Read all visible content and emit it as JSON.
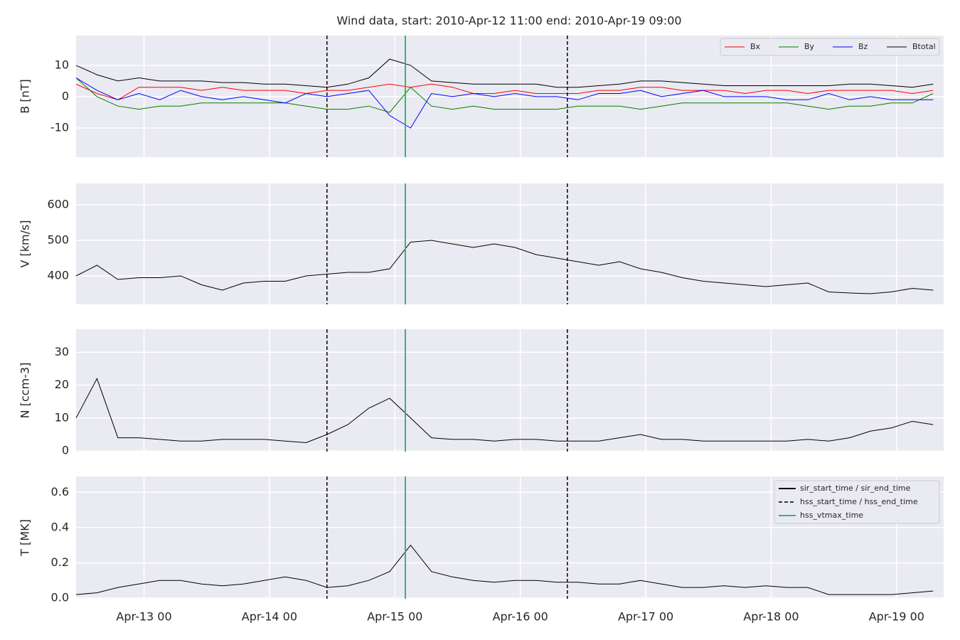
{
  "chart_data": {
    "type": "line",
    "title": "Wind data, start: 2010-Apr-12 11:00  end: 2010-Apr-19 09:00",
    "x": [
      "Apr-12 11",
      "Apr-12 15",
      "Apr-12 19",
      "Apr-12 23",
      "Apr-13 03",
      "Apr-13 07",
      "Apr-13 11",
      "Apr-13 15",
      "Apr-13 19",
      "Apr-13 23",
      "Apr-14 03",
      "Apr-14 07",
      "Apr-14 11",
      "Apr-14 15",
      "Apr-14 19",
      "Apr-14 23",
      "Apr-15 03",
      "Apr-15 07",
      "Apr-15 11",
      "Apr-15 15",
      "Apr-15 19",
      "Apr-15 23",
      "Apr-16 03",
      "Apr-16 07",
      "Apr-16 11",
      "Apr-16 15",
      "Apr-16 19",
      "Apr-16 23",
      "Apr-17 03",
      "Apr-17 07",
      "Apr-17 11",
      "Apr-17 15",
      "Apr-17 19",
      "Apr-17 23",
      "Apr-18 03",
      "Apr-18 07",
      "Apr-18 11",
      "Apr-18 15",
      "Apr-18 19",
      "Apr-18 23",
      "Apr-19 03",
      "Apr-19 07"
    ],
    "xlim": [
      "Apr-12 11",
      "Apr-19 09"
    ],
    "xticks": [
      "Apr-13 00",
      "Apr-14 00",
      "Apr-15 00",
      "Apr-16 00",
      "Apr-17 00",
      "Apr-18 00",
      "Apr-19 00"
    ],
    "grid": true,
    "markers": [
      {
        "name": "sir_start_time / sir_end_time",
        "times": [],
        "style": "solid",
        "color": "#000000"
      },
      {
        "name": "hss_start_time / hss_end_time",
        "times": [
          "Apr-14 11",
          "Apr-16 09"
        ],
        "style": "dashed",
        "color": "#000000"
      },
      {
        "name": "hss_vtmax_time",
        "times": [
          "Apr-15 02"
        ],
        "style": "solid",
        "color": "#3cb371"
      }
    ],
    "panels": [
      {
        "ylabel": "B [nT]",
        "ylim": [
          -19.3,
          19.5
        ],
        "yticks": [
          -10,
          0,
          10
        ],
        "legend": "upper right",
        "series": [
          {
            "name": "Bx",
            "color": "#ff0000",
            "values": [
              4,
              1,
              -1,
              3,
              3,
              3,
              2,
              3,
              2,
              2,
              2,
              1,
              2,
              2,
              3,
              4,
              3,
              4,
              3,
              1,
              1,
              2,
              1,
              1,
              1,
              2,
              2,
              3,
              3,
              2,
              2,
              2,
              1,
              2,
              2,
              1,
              2,
              2,
              2,
              2,
              1,
              2
            ]
          },
          {
            "name": "By",
            "color": "#008000",
            "values": [
              6,
              0,
              -3,
              -4,
              -3,
              -3,
              -2,
              -2,
              -2,
              -2,
              -2,
              -3,
              -4,
              -4,
              -3,
              -5,
              3,
              -3,
              -4,
              -3,
              -4,
              -4,
              -4,
              -4,
              -3,
              -3,
              -3,
              -4,
              -3,
              -2,
              -2,
              -2,
              -2,
              -2,
              -2,
              -3,
              -4,
              -3,
              -3,
              -2,
              -2,
              1
            ]
          },
          {
            "name": "Bz",
            "color": "#0000ff",
            "values": [
              6,
              2,
              -1,
              1,
              -1,
              2,
              0,
              -1,
              0,
              -1,
              -2,
              1,
              0,
              1,
              2,
              -6,
              -10,
              1,
              0,
              1,
              0,
              1,
              0,
              0,
              -1,
              1,
              1,
              2,
              0,
              1,
              2,
              0,
              0,
              0,
              -1,
              -1,
              1,
              -1,
              0,
              -1,
              -1,
              -1
            ]
          },
          {
            "name": "Btotal",
            "color": "#000000",
            "values": [
              10,
              7,
              5,
              6,
              5,
              5,
              5,
              4.5,
              4.5,
              4,
              4,
              3.5,
              3,
              4,
              6,
              12,
              10,
              5,
              4.5,
              4,
              4,
              4,
              4,
              3,
              3,
              3.5,
              4,
              5,
              5,
              4.5,
              4,
              3.5,
              3.5,
              3.5,
              3.5,
              3.5,
              3.5,
              4,
              4,
              3.5,
              3,
              4
            ]
          }
        ]
      },
      {
        "ylabel": "V [km/s]",
        "ylim": [
          320,
          660
        ],
        "yticks": [
          400,
          500,
          600
        ],
        "series": [
          {
            "color": "#000000",
            "values": [
              400,
              430,
              390,
              395,
              395,
              400,
              375,
              360,
              380,
              385,
              385,
              400,
              405,
              410,
              410,
              420,
              495,
              500,
              490,
              480,
              490,
              480,
              460,
              450,
              440,
              430,
              440,
              420,
              410,
              395,
              385,
              380,
              375,
              370,
              375,
              380,
              355,
              352,
              350,
              355,
              365,
              360
            ]
          }
        ]
      },
      {
        "ylabel": "N [ccm-3]",
        "ylim": [
          -0.2,
          37
        ],
        "yticks": [
          0,
          10,
          20,
          30
        ],
        "series": [
          {
            "color": "#000000",
            "values": [
              10,
              22,
              4,
              4,
              3.5,
              3,
              3,
              3.5,
              3.5,
              3.5,
              3,
              2.5,
              5,
              8,
              13,
              16,
              10,
              4,
              3.5,
              3.5,
              3,
              3.5,
              3.5,
              3,
              3,
              3,
              4,
              5,
              3.5,
              3.5,
              3,
              3,
              3,
              3,
              3,
              3.5,
              3,
              4,
              6,
              7,
              9,
              8
            ]
          }
        ]
      },
      {
        "ylabel": "T [MK]",
        "ylim": [
          -0.004,
          0.69
        ],
        "yticks": [
          {
            "value": 0,
            "label": "0.0"
          },
          0.2,
          0.4,
          0.6
        ],
        "legend": "upper right",
        "series": [
          {
            "color": "#000000",
            "values": [
              0.02,
              0.03,
              0.06,
              0.08,
              0.1,
              0.1,
              0.08,
              0.07,
              0.08,
              0.1,
              0.12,
              0.1,
              0.06,
              0.07,
              0.1,
              0.15,
              0.3,
              0.15,
              0.12,
              0.1,
              0.09,
              0.1,
              0.1,
              0.09,
              0.09,
              0.08,
              0.08,
              0.1,
              0.08,
              0.06,
              0.06,
              0.07,
              0.06,
              0.07,
              0.06,
              0.06,
              0.02,
              0.02,
              0.02,
              0.02,
              0.03,
              0.04
            ]
          }
        ]
      }
    ]
  }
}
